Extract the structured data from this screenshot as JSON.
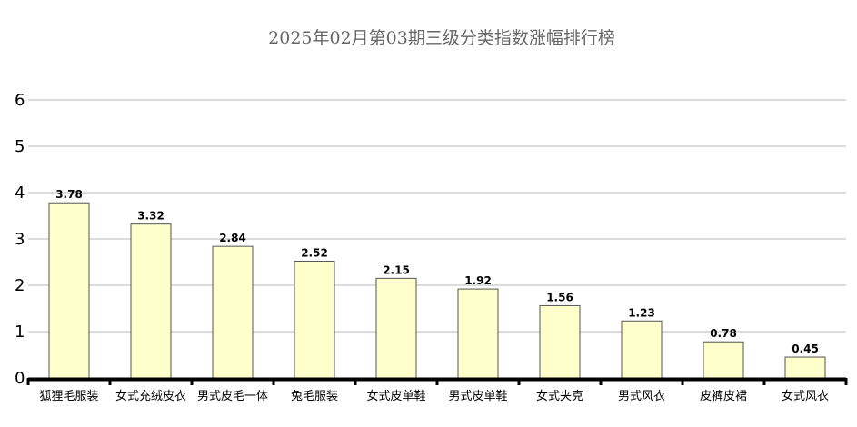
{
  "chart_data": {
    "type": "bar",
    "title": "2025年02月第03期三级分类指数涨幅排行榜",
    "categories": [
      "狐狸毛服装",
      "女式充绒皮衣",
      "男式皮毛一体",
      "兔毛服装",
      "女式皮单鞋",
      "男式皮单鞋",
      "女式夹克",
      "男式风衣",
      "皮裤皮裙",
      "女式风衣"
    ],
    "values": [
      3.78,
      3.32,
      2.84,
      2.52,
      2.15,
      1.92,
      1.56,
      1.23,
      0.78,
      0.45
    ],
    "value_labels": [
      "3.78",
      "3.32",
      "2.84",
      "2.52",
      "2.15",
      "1.92",
      "1.56",
      "1.23",
      "0.78",
      "0.45"
    ],
    "ylim": [
      0,
      6
    ],
    "yticks": [
      "0",
      "1",
      "2",
      "3",
      "4",
      "5",
      "6"
    ],
    "xlabel": "",
    "ylabel": "",
    "grid": true,
    "bar_color": "#ffffcc",
    "bar_stroke": "#555555",
    "grid_color": "#b8b8b8",
    "axis_color": "#000000"
  }
}
